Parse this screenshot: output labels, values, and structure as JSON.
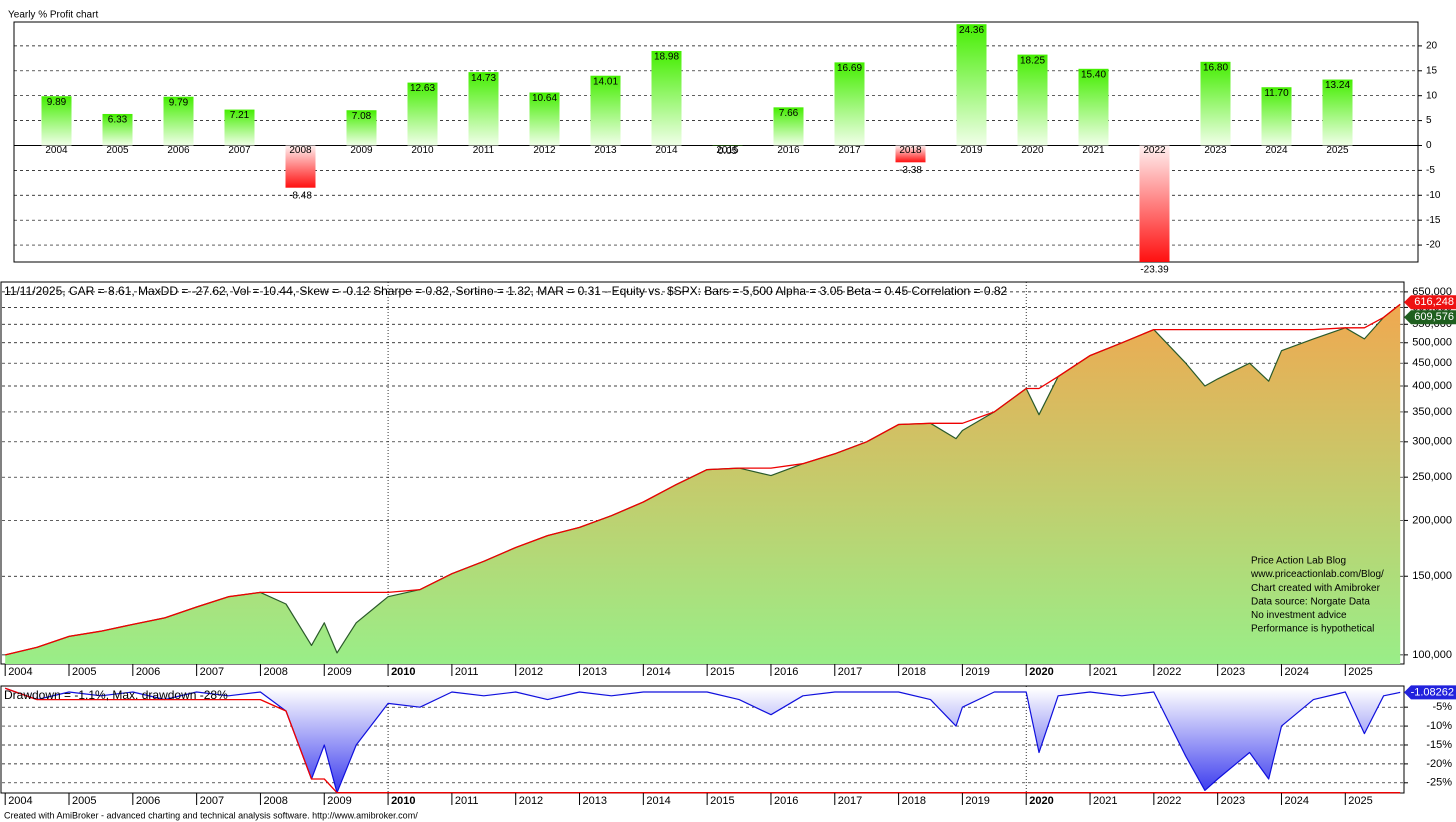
{
  "chart_data": [
    {
      "type": "bar",
      "title": "Yearly % Profit chart",
      "categories": [
        "2004",
        "2005",
        "2006",
        "2007",
        "2008",
        "2009",
        "2010",
        "2011",
        "2012",
        "2013",
        "2014",
        "2015",
        "2016",
        "2017",
        "2018",
        "2019",
        "2020",
        "2021",
        "2022",
        "2023",
        "2024",
        "2025"
      ],
      "values": [
        9.89,
        6.33,
        9.79,
        7.21,
        -8.48,
        7.08,
        12.63,
        14.73,
        10.64,
        14.01,
        18.98,
        0.05,
        7.66,
        16.69,
        -3.38,
        24.36,
        18.25,
        15.4,
        -23.39,
        16.8,
        11.7,
        13.24
      ],
      "value_labels": [
        "9.89",
        "6.33",
        "9.79",
        "7.21",
        "-8.48",
        "7.08",
        "12.63",
        "14.73",
        "10.64",
        "14.01",
        "18.98",
        "0.05",
        "7.66",
        "16.69",
        "-3.38",
        "24.36",
        "18.25",
        "15.40",
        "-23.39",
        "16.80",
        "11.70",
        "13.24"
      ],
      "color": "#44ee00",
      "negative_color": "#ff1010",
      "ylim": [
        -23.4,
        24.8
      ],
      "yticks": [
        -20,
        -15,
        -10,
        -5,
        0,
        5,
        10,
        15,
        20
      ],
      "grid": true
    },
    {
      "type": "area",
      "title": "11/11/2025, CAR = 8.61, MaxDD = -27.62, Vol = 10.44, Skew = -0.12 Sharpe = 0.82, Sortino = 1.32, MAR = 0.31 - Equity vs. $SPX:  Bars = 5,500 Alpha = 3.05 Beta = 0.45 Correlation = 0.82",
      "log_scale": true,
      "x": [
        2004.0,
        2004.5,
        2005.0,
        2005.5,
        2006.0,
        2006.5,
        2007.0,
        2007.5,
        2008.0,
        2008.4,
        2008.8,
        2009.0,
        2009.2,
        2009.5,
        2010.0,
        2010.5,
        2011.0,
        2011.5,
        2012.0,
        2012.5,
        2013.0,
        2013.5,
        2014.0,
        2014.5,
        2015.0,
        2015.5,
        2016.0,
        2016.5,
        2017.0,
        2017.5,
        2018.0,
        2018.5,
        2018.9,
        2019.0,
        2019.5,
        2020.0,
        2020.2,
        2020.5,
        2021.0,
        2021.5,
        2022.0,
        2022.5,
        2022.8,
        2023.0,
        2023.5,
        2023.8,
        2024.0,
        2024.5,
        2025.0,
        2025.3,
        2025.6,
        2025.86
      ],
      "series": [
        {
          "color": "#2a5a2a",
          "values": [
            100000,
            104000,
            110000,
            113000,
            117000,
            121000,
            128000,
            135000,
            138000,
            130000,
            105000,
            118000,
            101000,
            118000,
            135000,
            140000,
            152000,
            162000,
            174000,
            185000,
            193000,
            205000,
            220000,
            240000,
            260000,
            262000,
            252000,
            268000,
            282000,
            300000,
            328000,
            330000,
            305000,
            318000,
            350000,
            395000,
            345000,
            420000,
            468000,
            500000,
            535000,
            450000,
            400000,
            415000,
            450000,
            410000,
            480000,
            510000,
            540000,
            510000,
            570000,
            609576
          ]
        },
        {
          "color": "#ee0000",
          "values": [
            100000,
            104000,
            110000,
            113000,
            117000,
            121000,
            128000,
            135000,
            138000,
            138000,
            138000,
            138000,
            138000,
            138000,
            138000,
            140000,
            152000,
            162000,
            174000,
            185000,
            193000,
            205000,
            220000,
            240000,
            260000,
            262000,
            262000,
            268000,
            282000,
            300000,
            328000,
            330000,
            330000,
            330000,
            350000,
            395000,
            395000,
            420000,
            468000,
            500000,
            535000,
            535000,
            535000,
            535000,
            535000,
            535000,
            535000,
            535000,
            540000,
            540000,
            570000,
            609576
          ]
        }
      ],
      "area_colors": [
        "#f0a850",
        "#99ee88"
      ],
      "xlim": [
        2003.95,
        2025.92
      ],
      "xticks": [
        2004,
        2005,
        2006,
        2007,
        2008,
        2009,
        2010,
        2011,
        2012,
        2013,
        2014,
        2015,
        2016,
        2017,
        2018,
        2019,
        2020,
        2021,
        2022,
        2023,
        2024,
        2025
      ],
      "xmarkers": [
        2010,
        2020
      ],
      "ylim": [
        95400,
        684000
      ],
      "yticks": [
        {
          "value": 100000,
          "label": "100,000"
        },
        {
          "value": 150000,
          "label": "150,000"
        },
        {
          "value": 200000,
          "label": "200,000"
        },
        {
          "value": 250000,
          "label": "250,000"
        },
        {
          "value": 300000,
          "label": "300,000"
        },
        {
          "value": 350000,
          "label": "350,000"
        },
        {
          "value": 400000,
          "label": "400,000"
        },
        {
          "value": 450000,
          "label": "450,000"
        },
        {
          "value": 500000,
          "label": "500,000"
        },
        {
          "value": 550000,
          "label": "550,000"
        },
        {
          "value": 600000,
          "label": "600,000"
        },
        {
          "value": 650000,
          "label": "650,000"
        }
      ],
      "grid": true,
      "markers": [
        {
          "value": 616248,
          "label": "616,248",
          "color": "#ee1111"
        },
        {
          "value": 609576,
          "label": "609,576",
          "color": "#1f5f1f"
        }
      ],
      "annotations": [
        "Price Action Lab Blog",
        "www.priceactionlab.com/Blog/",
        "Chart created with Amibroker",
        "Data source: Norgate Data",
        "No investment advice",
        "Performance is hypothetical"
      ]
    },
    {
      "type": "area",
      "title": "Drawdown = -1.1%, Max. drawdown -28%",
      "x": [
        2004.0,
        2004.5,
        2005.0,
        2005.5,
        2006.0,
        2006.5,
        2007.0,
        2007.5,
        2008.0,
        2008.4,
        2008.8,
        2009.0,
        2009.2,
        2009.5,
        2010.0,
        2010.5,
        2011.0,
        2011.5,
        2012.0,
        2012.5,
        2013.0,
        2013.5,
        2014.0,
        2014.5,
        2015.0,
        2015.5,
        2016.0,
        2016.5,
        2017.0,
        2017.5,
        2018.0,
        2018.5,
        2018.9,
        2019.0,
        2019.5,
        2020.0,
        2020.2,
        2020.5,
        2021.0,
        2021.5,
        2022.0,
        2022.5,
        2022.8,
        2023.0,
        2023.5,
        2023.8,
        2024.0,
        2024.5,
        2025.0,
        2025.3,
        2025.6,
        2025.86
      ],
      "series": [
        {
          "color": "#1010dd",
          "values": [
            0,
            -3,
            -1,
            -2,
            -1,
            -3,
            -1,
            -2,
            -1,
            -6,
            -24,
            -15,
            -27.62,
            -15,
            -4,
            -5,
            -1,
            -2,
            -1,
            -3,
            -1,
            -2,
            -1,
            -1,
            -1,
            -3,
            -7,
            -2,
            -1,
            -1,
            -1,
            -3,
            -10,
            -5,
            -1,
            -1,
            -17,
            -2,
            -1,
            -2,
            -1,
            -18,
            -27,
            -24,
            -17,
            -24,
            -10,
            -3,
            -1,
            -12,
            -2,
            -1.08262
          ]
        },
        {
          "color": "#ee0000",
          "values": [
            0,
            -3,
            -3,
            -3,
            -3,
            -3,
            -3,
            -3,
            -3,
            -6,
            -24,
            -24,
            -27.62,
            -27.62,
            -27.62,
            -27.62,
            -27.62,
            -27.62,
            -27.62,
            -27.62,
            -27.62,
            -27.62,
            -27.62,
            -27.62,
            -27.62,
            -27.62,
            -27.62,
            -27.62,
            -27.62,
            -27.62,
            -27.62,
            -27.62,
            -27.62,
            -27.62,
            -27.62,
            -27.62,
            -27.62,
            -27.62,
            -27.62,
            -27.62,
            -27.62,
            -27.62,
            -27.62,
            -27.62,
            -27.62,
            -27.62,
            -27.62,
            -27.62,
            -27.62,
            -27.62,
            -27.62,
            -27.62
          ]
        }
      ],
      "area_colors": [
        "#ffffff",
        "#3a3aee"
      ],
      "xlim": [
        2003.95,
        2025.92
      ],
      "xticks": [
        2004,
        2005,
        2006,
        2007,
        2008,
        2009,
        2010,
        2011,
        2012,
        2013,
        2014,
        2015,
        2016,
        2017,
        2018,
        2019,
        2020,
        2021,
        2022,
        2023,
        2024,
        2025
      ],
      "xmarkers": [
        2010,
        2020
      ],
      "ylim": [
        -27.7,
        0.6
      ],
      "yticks": [
        {
          "value": -5,
          "label": "-5%"
        },
        {
          "value": -10,
          "label": "-10%"
        },
        {
          "value": -15,
          "label": "-15%"
        },
        {
          "value": -20,
          "label": "-20%"
        },
        {
          "value": -25,
          "label": "-25%"
        }
      ],
      "grid": true,
      "markers": [
        {
          "value": -1.08262,
          "label": "-1.08262",
          "color": "#2222dd"
        }
      ]
    }
  ],
  "footer": "Created with AmiBroker - advanced charting and technical analysis software. http://www.amibroker.com/"
}
